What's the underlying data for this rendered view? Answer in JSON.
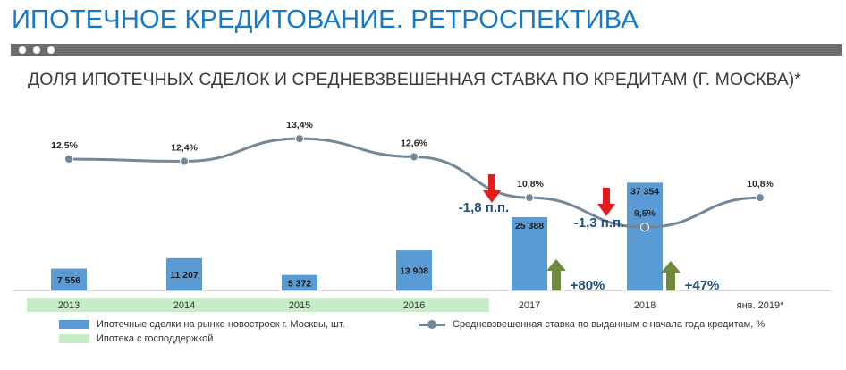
{
  "page": {
    "title": "ИПОТЕЧНОЕ КРЕДИТОВАНИЕ. РЕТРОСПЕКТИВА",
    "subtitle": "ДОЛЯ ИПОТЕЧНЫХ СДЕЛОК И СРЕДНЕВЗВЕШЕННАЯ СТАВКА ПО КРЕДИТАМ (Г. МОСКВА)*"
  },
  "colors": {
    "title": "#1479c9",
    "bar": "#5b9bd5",
    "line": "#73879a",
    "state_support": "#c6ecc8",
    "down_arrow": "#e31b1b",
    "up_arrow": "#6f8a3c",
    "delta_text": "#1f4e79"
  },
  "chart_data": {
    "type": "bar+line",
    "categories": [
      "2013",
      "2014",
      "2015",
      "2016",
      "2017",
      "2018",
      "янв. 2019*"
    ],
    "series": [
      {
        "name": "Ипотечные сделки на рынке новостроек г. Москвы, шт.",
        "type": "bar",
        "values": [
          7556,
          11207,
          5372,
          13908,
          25388,
          37354,
          null
        ],
        "labels": [
          "7 556",
          "11 207",
          "5 372",
          "13 908",
          "25 388",
          "37 354",
          ""
        ]
      },
      {
        "name": "Средневзвешенная ставка по выданным с начала года кредитам, %",
        "type": "line",
        "values": [
          12.5,
          12.4,
          13.4,
          12.6,
          10.8,
          9.5,
          10.8
        ],
        "labels": [
          "12,5%",
          "12,4%",
          "13,4%",
          "12,6%",
          "10,8%",
          "9,5%",
          "10,8%"
        ]
      }
    ],
    "state_support_band": {
      "name": "Ипотека с господдержкой",
      "from": "2013",
      "to": "2016"
    },
    "annotations": [
      {
        "category": "2017",
        "direction": "down",
        "text": "-1,8 п.п."
      },
      {
        "category": "2018",
        "direction": "down",
        "text": "-1,3 п.п."
      },
      {
        "category": "2017",
        "direction": "up",
        "text": "+80%"
      },
      {
        "category": "2018",
        "direction": "up",
        "text": "+47%"
      }
    ],
    "legend_position": "bottom"
  }
}
